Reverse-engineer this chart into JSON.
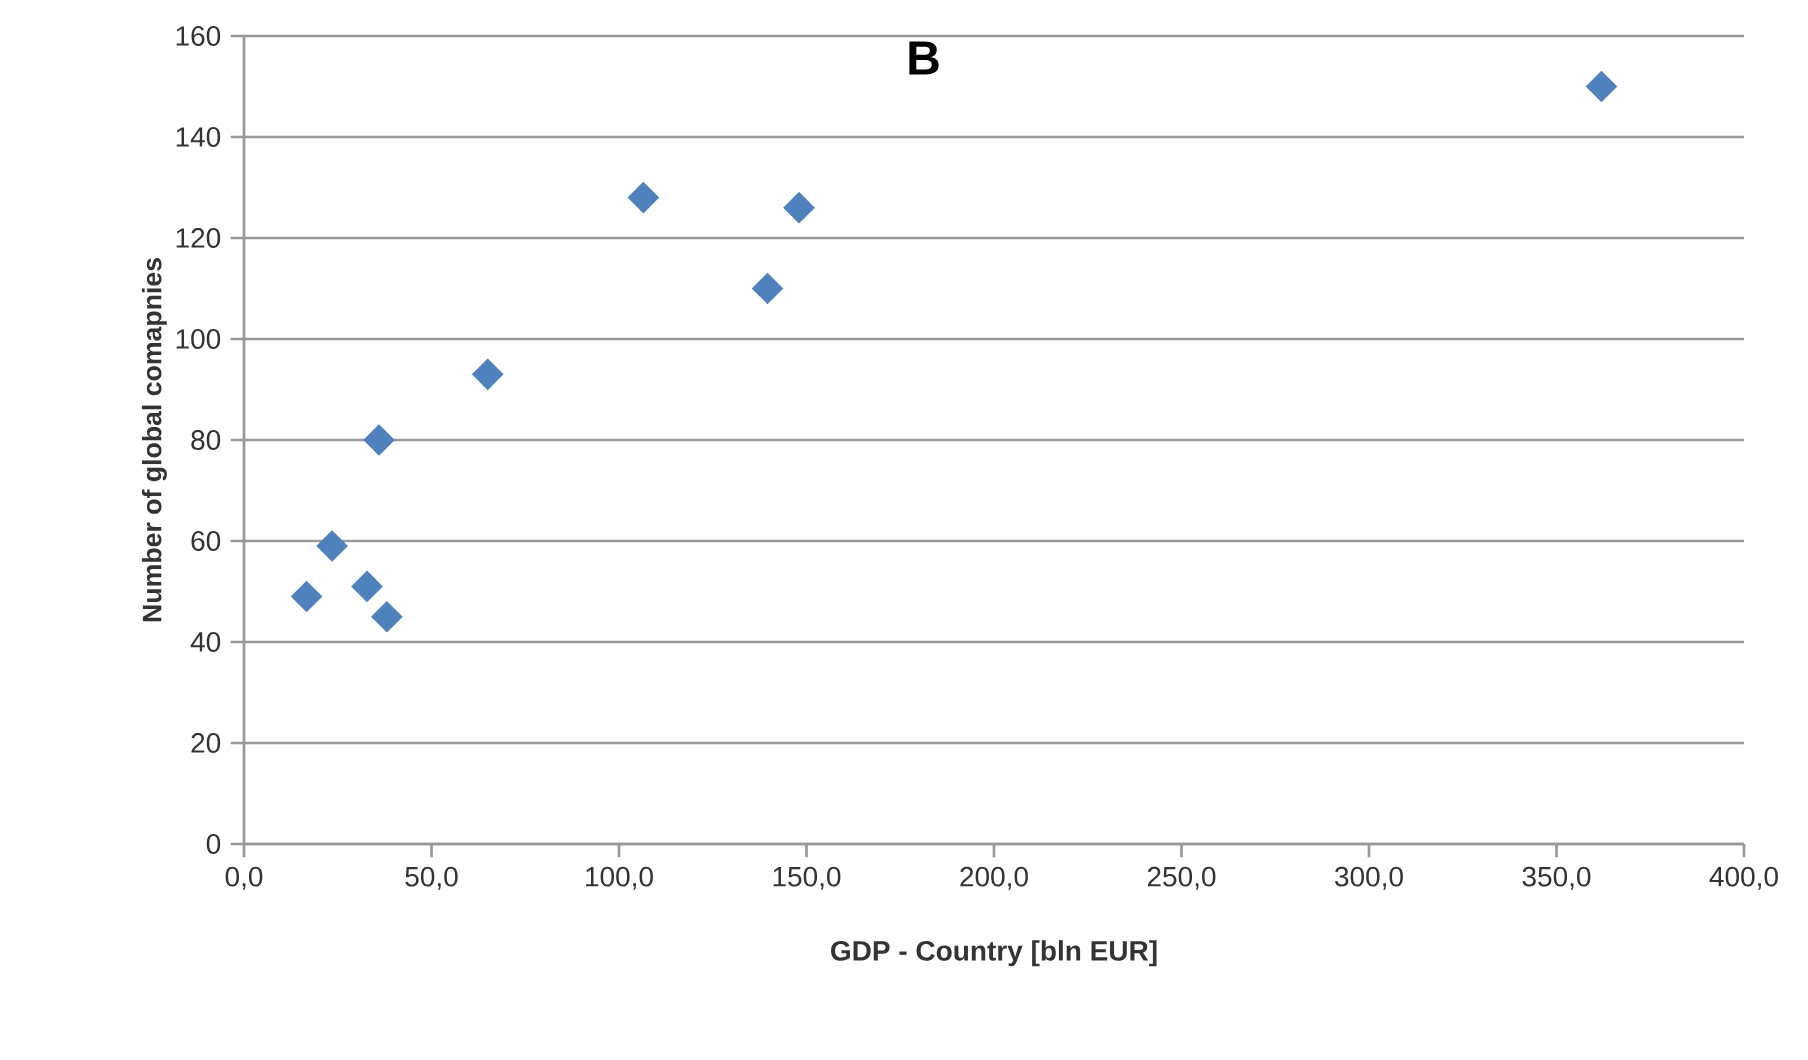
{
  "chart_data": {
    "type": "scatter",
    "title": "B",
    "xlabel": "GDP - Country [bln EUR]",
    "ylabel": "Number of global comapnies",
    "x": [
      16.7,
      23.5,
      32.8,
      38.1,
      36,
      65,
      106.5,
      139.6,
      148,
      362
    ],
    "values": [
      49,
      59,
      51,
      45,
      80,
      93,
      128,
      110,
      126,
      150
    ],
    "color": "#4f81bd",
    "marker": "diamond",
    "grid": "y",
    "xlim": [
      0,
      400
    ],
    "ylim": [
      0,
      160
    ],
    "xticks": [
      {
        "value": 0,
        "label": "0,0"
      },
      {
        "value": 50,
        "label": "50,0"
      },
      {
        "value": 100,
        "label": "100,0"
      },
      {
        "value": 150,
        "label": "150,0"
      },
      {
        "value": 200,
        "label": "200,0"
      },
      {
        "value": 250,
        "label": "250,0"
      },
      {
        "value": 300,
        "label": "300,0"
      },
      {
        "value": 350,
        "label": "350,0"
      },
      {
        "value": 400,
        "label": "400,0"
      }
    ],
    "yticks": [
      0,
      20,
      40,
      60,
      80,
      100,
      120,
      140,
      160
    ]
  }
}
